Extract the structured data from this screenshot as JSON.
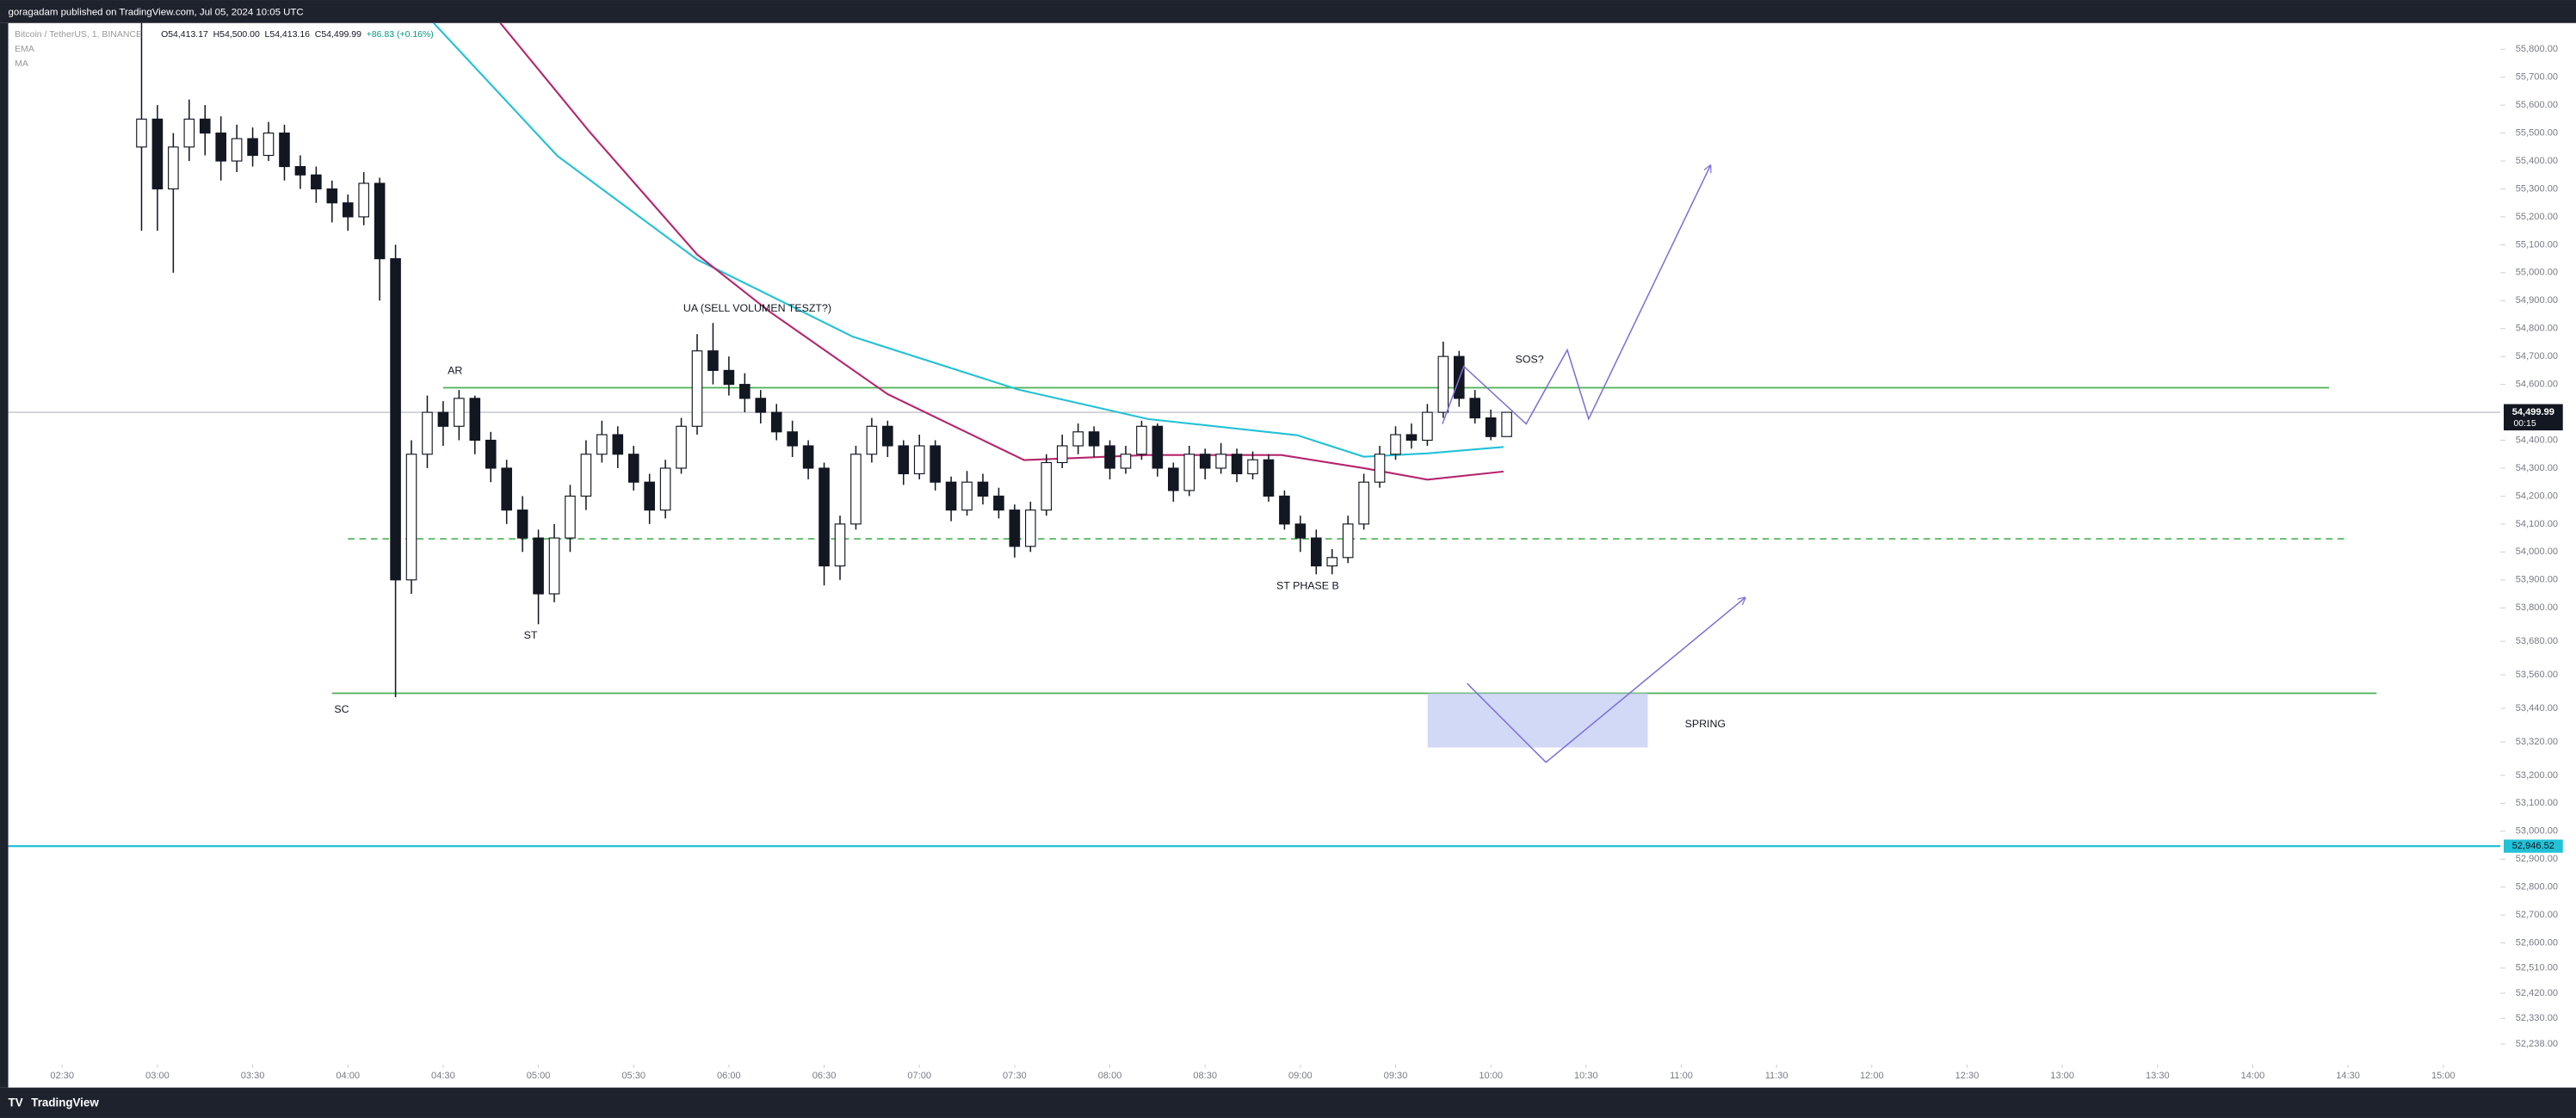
{
  "chart_data": {
    "type": "candlestick",
    "header": "goragadam published on TradingView.com, Jul 05, 2024 10:05 UTC",
    "ohlc_legend": [
      "O54,413.17",
      "H54,500.00",
      "L54,413.16",
      "C54,499.99",
      "+86.83 (+0.16%)"
    ],
    "footer": "TradingView",
    "up_color": "#ffffff",
    "down_color": "#131722",
    "xlim": [
      "02:13",
      "15:18"
    ],
    "xticks": [
      "02:30",
      "03:00",
      "03:30",
      "04:00",
      "04:30",
      "05:00",
      "05:30",
      "06:00",
      "06:30",
      "07:00",
      "07:30",
      "08:00",
      "08:30",
      "09:00",
      "09:30",
      "10:00",
      "10:30",
      "11:00",
      "11:30",
      "12:00",
      "12:30",
      "13:00",
      "13:30",
      "14:00",
      "14:30",
      "15:00"
    ],
    "ylim": [
      52082,
      55894
    ],
    "yticks": [
      {
        "value": 55800,
        "label": "55,800.00"
      },
      {
        "value": 55700,
        "label": "55,700.00"
      },
      {
        "value": 55600,
        "label": "55,600.00"
      },
      {
        "value": 55500,
        "label": "55,500.00"
      },
      {
        "value": 55400,
        "label": "55,400.00"
      },
      {
        "value": 55300,
        "label": "55,300.00"
      },
      {
        "value": 55200,
        "label": "55,200.00"
      },
      {
        "value": 55100,
        "label": "55,100.00"
      },
      {
        "value": 55000,
        "label": "55,000.00"
      },
      {
        "value": 54900,
        "label": "54,900.00"
      },
      {
        "value": 54800,
        "label": "54,800.00"
      },
      {
        "value": 54700,
        "label": "54,700.00"
      },
      {
        "value": 54600,
        "label": "54,600.00"
      },
      {
        "value": 54400,
        "label": "54,400.00"
      },
      {
        "value": 54300,
        "label": "54,300.00"
      },
      {
        "value": 54200,
        "label": "54,200.00"
      },
      {
        "value": 54100,
        "label": "54,100.00"
      },
      {
        "value": 54000,
        "label": "54,000.00"
      },
      {
        "value": 53900,
        "label": "53,900.00"
      },
      {
        "value": 53800,
        "label": "53,800.00"
      },
      {
        "value": 53680,
        "label": "53,680.00"
      },
      {
        "value": 53560,
        "label": "53,560.00"
      },
      {
        "value": 53440,
        "label": "53,440.00"
      },
      {
        "value": 53320,
        "label": "53,320.00"
      },
      {
        "value": 53200,
        "label": "53,200.00"
      },
      {
        "value": 53100,
        "label": "53,100.00"
      },
      {
        "value": 53000,
        "label": "53,000.00"
      },
      {
        "value": 52900,
        "label": "52,900.00"
      },
      {
        "value": 52800,
        "label": "52,800.00"
      },
      {
        "value": 52700,
        "label": "52,700.00"
      },
      {
        "value": 52600,
        "label": "52,600.00"
      },
      {
        "value": 52510,
        "label": "52,510.00"
      },
      {
        "value": 52420,
        "label": "52,420.00"
      },
      {
        "value": 52330,
        "label": "52,330.00"
      },
      {
        "value": 52238,
        "label": "52,238.00"
      }
    ],
    "series": [
      {
        "name": "Bitcoin / TetherUS, 1, BINANCE",
        "x": [
          "02:55",
          "03:00",
          "03:05",
          "03:10",
          "03:15",
          "03:20",
          "03:25",
          "03:30",
          "03:35",
          "03:40",
          "03:45",
          "03:50",
          "03:55",
          "04:00",
          "04:05",
          "04:10",
          "04:15",
          "04:20",
          "04:25",
          "04:30",
          "04:35",
          "04:40",
          "04:45",
          "04:50",
          "04:55",
          "05:00",
          "05:05",
          "05:10",
          "05:15",
          "05:20",
          "05:25",
          "05:30",
          "05:35",
          "05:40",
          "05:45",
          "05:50",
          "05:55",
          "06:00",
          "06:05",
          "06:10",
          "06:15",
          "06:20",
          "06:25",
          "06:30",
          "06:35",
          "06:40",
          "06:45",
          "06:50",
          "06:55",
          "07:00",
          "07:05",
          "07:10",
          "07:15",
          "07:20",
          "07:25",
          "07:30",
          "07:35",
          "07:40",
          "07:45",
          "07:50",
          "07:55",
          "08:00",
          "08:05",
          "08:10",
          "08:15",
          "08:20",
          "08:25",
          "08:30",
          "08:35",
          "08:40",
          "08:45",
          "08:50",
          "08:55",
          "09:00",
          "09:05",
          "09:10",
          "09:15",
          "09:20",
          "09:25",
          "09:30",
          "09:35",
          "09:40",
          "09:45",
          "09:50",
          "09:55",
          "10:00",
          "10:05"
        ],
        "open": [
          55450,
          55550,
          55300,
          55450,
          55550,
          55500,
          55400,
          55480,
          55420,
          55500,
          55380,
          55350,
          55300,
          55250,
          55200,
          55320,
          55050,
          53900,
          54350,
          54500,
          54450,
          54550,
          54400,
          54300,
          54150,
          54050,
          53850,
          54050,
          54200,
          54350,
          54420,
          54350,
          54250,
          54150,
          54300,
          54450,
          54720,
          54650,
          54600,
          54550,
          54500,
          54430,
          54380,
          54300,
          53950,
          54100,
          54350,
          54450,
          54380,
          54280,
          54380,
          54250,
          54150,
          54250,
          54200,
          54150,
          54020,
          54150,
          54320,
          54380,
          54430,
          54380,
          54300,
          54350,
          54450,
          54300,
          54220,
          54350,
          54300,
          54350,
          54280,
          54330,
          54200,
          54100,
          54050,
          53950,
          53980,
          54100,
          54250,
          54350,
          54420,
          54400,
          54500,
          54700,
          54550,
          54480,
          54413.17
        ],
        "high": [
          56000,
          55600,
          55500,
          55620,
          55600,
          55560,
          55530,
          55520,
          55540,
          55530,
          55420,
          55380,
          55330,
          55280,
          55360,
          55340,
          55100,
          54400,
          54560,
          54540,
          54580,
          54560,
          54430,
          54330,
          54200,
          54080,
          54100,
          54240,
          54400,
          54470,
          54450,
          54380,
          54280,
          54330,
          54480,
          54780,
          54820,
          54700,
          54640,
          54580,
          54530,
          54470,
          54400,
          54320,
          54130,
          54380,
          54480,
          54470,
          54400,
          54420,
          54400,
          54270,
          54290,
          54280,
          54230,
          54170,
          54180,
          54350,
          54420,
          54460,
          54450,
          54400,
          54380,
          54470,
          54460,
          54320,
          54380,
          54370,
          54390,
          54370,
          54360,
          54350,
          54220,
          54130,
          54080,
          54010,
          54130,
          54280,
          54380,
          54450,
          54460,
          54530,
          54753,
          54720,
          54580,
          54510,
          54500
        ],
        "low": [
          55150,
          55150,
          55000,
          55400,
          55420,
          55330,
          55360,
          55380,
          55400,
          55330,
          55300,
          55250,
          55180,
          55150,
          55170,
          54900,
          53480,
          53850,
          54300,
          54380,
          54400,
          54350,
          54250,
          54100,
          54000,
          53741,
          53820,
          54000,
          54150,
          54320,
          54300,
          54220,
          54100,
          54120,
          54280,
          54420,
          54600,
          54560,
          54500,
          54460,
          54400,
          54340,
          54260,
          53880,
          53900,
          54080,
          54320,
          54340,
          54240,
          54260,
          54220,
          54110,
          54130,
          54170,
          54120,
          53980,
          54000,
          54130,
          54300,
          54350,
          54340,
          54260,
          54280,
          54330,
          54270,
          54180,
          54200,
          54260,
          54280,
          54250,
          54260,
          54180,
          54080,
          54000,
          53920,
          53920,
          53960,
          54080,
          54230,
          54330,
          54370,
          54380,
          54480,
          54520,
          54460,
          54400,
          54413.16
        ],
        "close": [
          55550,
          55300,
          55450,
          55550,
          55500,
          55400,
          55480,
          55420,
          55500,
          55380,
          55350,
          55300,
          55250,
          55200,
          55320,
          55050,
          53900,
          54350,
          54500,
          54450,
          54550,
          54400,
          54300,
          54150,
          54050,
          53850,
          54050,
          54200,
          54350,
          54420,
          54350,
          54250,
          54150,
          54300,
          54450,
          54720,
          54650,
          54600,
          54550,
          54500,
          54430,
          54380,
          54300,
          53950,
          54100,
          54350,
          54450,
          54380,
          54280,
          54380,
          54250,
          54150,
          54250,
          54200,
          54150,
          54020,
          54150,
          54320,
          54380,
          54430,
          54380,
          54300,
          54350,
          54450,
          54300,
          54220,
          54350,
          54300,
          54350,
          54280,
          54330,
          54200,
          54100,
          54050,
          53950,
          53980,
          54100,
          54250,
          54350,
          54420,
          54400,
          54500,
          54700,
          54550,
          54480,
          54413.17,
          54499.99
        ]
      }
    ],
    "overlays": [
      {
        "name": "EMA",
        "color": "#22c1d6",
        "x": [
          "04:27",
          "05:06",
          "05:50",
          "06:39",
          "07:31",
          "08:12",
          "08:59",
          "09:20",
          "09:40",
          "10:04"
        ],
        "values": [
          55894,
          55418,
          55047,
          54771,
          54582,
          54476,
          54418,
          54341,
          54353,
          54376
        ]
      },
      {
        "name": "MA",
        "color": "#b5256d",
        "x": [
          "04:48",
          "05:16",
          "05:50",
          "06:13",
          "06:50",
          "07:33",
          "08:12",
          "08:54",
          "09:20",
          "09:40",
          "10:04"
        ],
        "values": [
          55894,
          55506,
          55065,
          54859,
          54565,
          54329,
          54347,
          54347,
          54300,
          54259,
          54288
        ]
      }
    ],
    "levels": [
      {
        "value": 54588,
        "from": "04:30",
        "to": "14:24",
        "color": "#4caf50",
        "dashed": false
      },
      {
        "value": 54047,
        "from": "04:00",
        "to": "14:29",
        "color": "#4caf50",
        "dashed": true
      },
      {
        "value": 53494,
        "from": "03:55",
        "to": "14:39",
        "color": "#4caf50",
        "dashed": false
      }
    ],
    "marker_line": {
      "value": 52946.52,
      "label": "52,946.52",
      "color": "#22c1d6"
    },
    "last_price": {
      "value": 54499.99,
      "label": "54,499.99",
      "countdown": "00:15"
    },
    "annotations": [
      "AR",
      "ST",
      "UA (SELL VOLUMEN TESZT?)",
      "SC",
      "ST PHASE B",
      "SOS?",
      "SPRING"
    ]
  }
}
